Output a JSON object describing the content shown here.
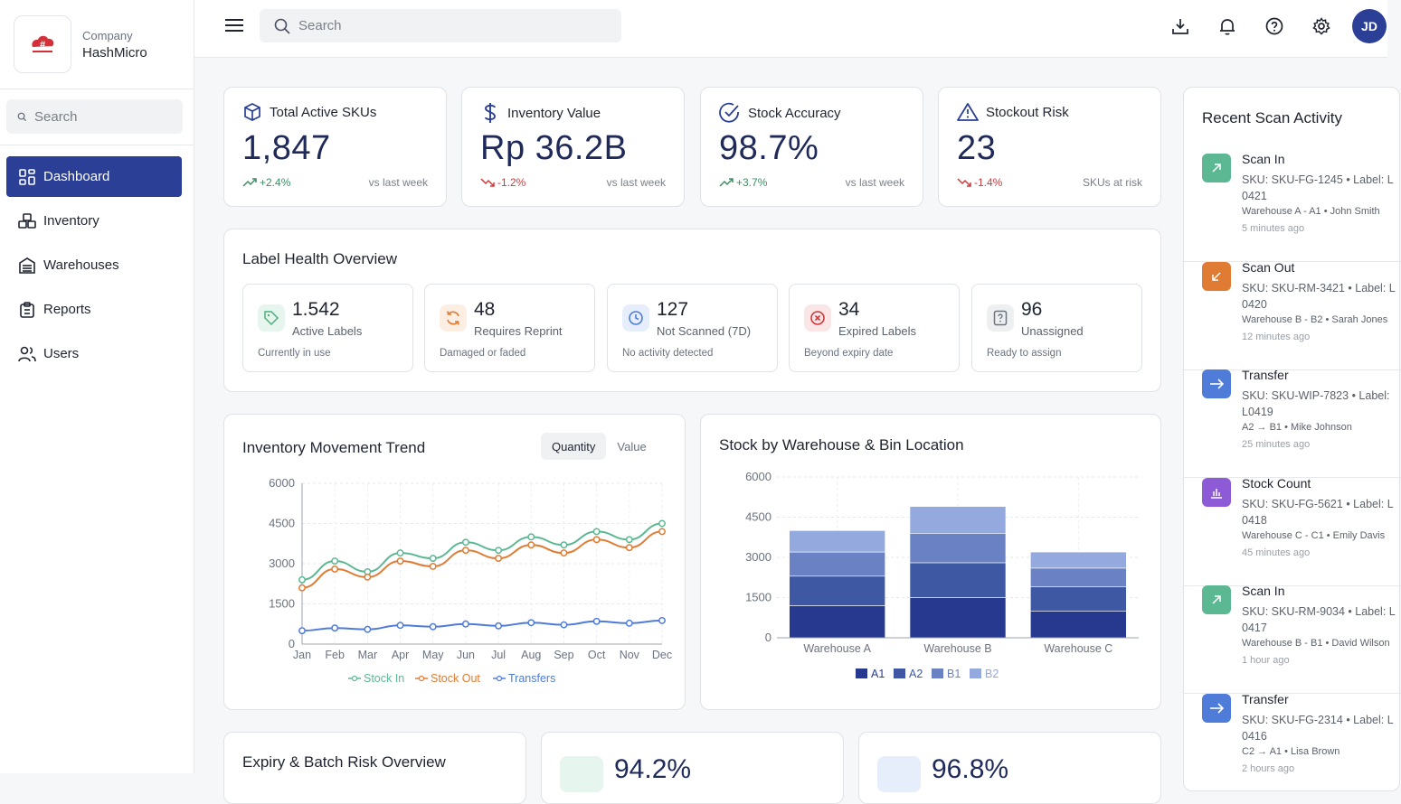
{
  "company": {
    "label": "Company",
    "name": "HashMicro"
  },
  "sidebar": {
    "search_placeholder": "Search",
    "items": [
      {
        "label": "Dashboard",
        "icon": "dashboard-icon",
        "active": true
      },
      {
        "label": "Inventory",
        "icon": "boxes-icon"
      },
      {
        "label": "Warehouses",
        "icon": "warehouse-icon"
      },
      {
        "label": "Reports",
        "icon": "clipboard-icon"
      },
      {
        "label": "Users",
        "icon": "users-icon"
      }
    ]
  },
  "topbar": {
    "search_placeholder": "Search",
    "avatar_initials": "JD"
  },
  "kpis": [
    {
      "title": "Total Active SKUs",
      "value": "1,847",
      "delta": "+2.4%",
      "trend": "up",
      "note": "vs last week",
      "icon": "cube-icon"
    },
    {
      "title": "Inventory Value",
      "value": "Rp 36.2B",
      "delta": "-1.2%",
      "trend": "down",
      "note": "vs last week",
      "icon": "dollar-icon"
    },
    {
      "title": "Stock Accuracy",
      "value": "98.7%",
      "delta": "+3.7%",
      "trend": "up",
      "note": "vs last week",
      "icon": "check-circle-icon"
    },
    {
      "title": "Stockout Risk",
      "value": "23",
      "delta": "-1.4%",
      "trend": "down",
      "note": "SKUs at risk",
      "icon": "warning-icon"
    }
  ],
  "label_health": {
    "title": "Label Health Overview",
    "cards": [
      {
        "value": "1.542",
        "label": "Active Labels",
        "sub": "Currently in use",
        "color": "#4caf7d",
        "bg": "#e6f5ed",
        "icon": "tag-icon"
      },
      {
        "value": "48",
        "label": "Requires Reprint",
        "sub": "Damaged or faded",
        "color": "#e07b33",
        "bg": "#fdeee3",
        "icon": "refresh-icon"
      },
      {
        "value": "127",
        "label": "Not Scanned (7D)",
        "sub": "No activity detected",
        "color": "#4f7bd9",
        "bg": "#e7eefb",
        "icon": "clock-icon"
      },
      {
        "value": "34",
        "label": "Expired Labels",
        "sub": "Beyond expiry date",
        "color": "#d0393c",
        "bg": "#fbe6e7",
        "icon": "x-circle-icon"
      },
      {
        "value": "96",
        "label": "Unassigned",
        "sub": "Ready to assign",
        "color": "#6b7280",
        "bg": "#eeeff1",
        "icon": "question-file-icon"
      }
    ]
  },
  "movement": {
    "title": "Inventory Movement Trend",
    "toggle": [
      "Quantity",
      "Value"
    ]
  },
  "stock": {
    "title": "Stock by Warehouse & Bin Location"
  },
  "expiry": {
    "title": "Expiry & Batch Risk Overview"
  },
  "bottom_stats": [
    "94.2%",
    "96.8%"
  ],
  "recent": {
    "title": "Recent Scan Activity",
    "items": [
      {
        "type": "Scan In",
        "detail": "SKU: SKU-FG-1245 • Label: L0421",
        "meta": "Warehouse A - A1 • John Smith",
        "time": "5 minutes ago",
        "color": "#5cb893",
        "icon": "arrow-up-right-icon"
      },
      {
        "type": "Scan Out",
        "detail": "SKU: SKU-RM-3421 • Label: L0420",
        "meta": "Warehouse B - B2 • Sarah Jones",
        "time": "12 minutes ago",
        "color": "#e07b33",
        "icon": "arrow-down-left-icon"
      },
      {
        "type": "Transfer",
        "detail": "SKU: SKU-WIP-7823 • Label: L0419",
        "meta": "A2 → B1 • Mike Johnson",
        "time": "25 minutes ago",
        "color": "#4f7bd9",
        "icon": "arrow-right-icon"
      },
      {
        "type": "Stock Count",
        "detail": "SKU: SKU-FG-5621 • Label: L0418",
        "meta": "Warehouse C - C1 • Emily Davis",
        "time": "45 minutes ago",
        "color": "#8e5bd6",
        "icon": "bar-chart-icon"
      },
      {
        "type": "Scan In",
        "detail": "SKU: SKU-RM-9034 • Label: L0417",
        "meta": "Warehouse B - B1 • David Wilson",
        "time": "1 hour ago",
        "color": "#5cb893",
        "icon": "arrow-up-right-icon"
      },
      {
        "type": "Transfer",
        "detail": "SKU: SKU-FG-2314 • Label: L0416",
        "meta": "C2 → A1 • Lisa Brown",
        "time": "2 hours ago",
        "color": "#4f7bd9",
        "icon": "arrow-right-icon"
      }
    ]
  },
  "chart_data": [
    {
      "type": "line",
      "title": "Inventory Movement Trend",
      "categories": [
        "Jan",
        "Feb",
        "Mar",
        "Apr",
        "May",
        "Jun",
        "Jul",
        "Aug",
        "Sep",
        "Oct",
        "Nov",
        "Dec"
      ],
      "ylim": [
        0,
        6000
      ],
      "yticks": [
        0,
        1500,
        3000,
        4500,
        6000
      ],
      "grid": true,
      "legend": "bottom",
      "series": [
        {
          "name": "Stock In",
          "color": "#5cb893",
          "values": [
            2400,
            3100,
            2700,
            3400,
            3200,
            3800,
            3500,
            4000,
            3700,
            4200,
            3900,
            4500
          ]
        },
        {
          "name": "Stock Out",
          "color": "#e07b33",
          "values": [
            2100,
            2800,
            2500,
            3100,
            2900,
            3500,
            3200,
            3700,
            3400,
            3900,
            3600,
            4200
          ]
        },
        {
          "name": "Transfers",
          "color": "#4f7bd9",
          "values": [
            500,
            600,
            550,
            700,
            650,
            750,
            680,
            800,
            720,
            850,
            780,
            880
          ]
        }
      ]
    },
    {
      "type": "bar",
      "stacked": true,
      "title": "Stock by Warehouse & Bin Location",
      "categories": [
        "Warehouse A",
        "Warehouse B",
        "Warehouse C"
      ],
      "ylim": [
        0,
        6000
      ],
      "yticks": [
        0,
        1500,
        3000,
        4500,
        6000
      ],
      "grid": true,
      "legend": "bottom",
      "series": [
        {
          "name": "A1",
          "color": "#26398f",
          "values": [
            1200,
            1500,
            1000
          ]
        },
        {
          "name": "A2",
          "color": "#3f58a3",
          "values": [
            1100,
            1300,
            900
          ]
        },
        {
          "name": "B1",
          "color": "#6a82c4",
          "values": [
            900,
            1100,
            700
          ]
        },
        {
          "name": "B2",
          "color": "#94a9dd",
          "values": [
            800,
            1000,
            600
          ]
        }
      ]
    }
  ]
}
